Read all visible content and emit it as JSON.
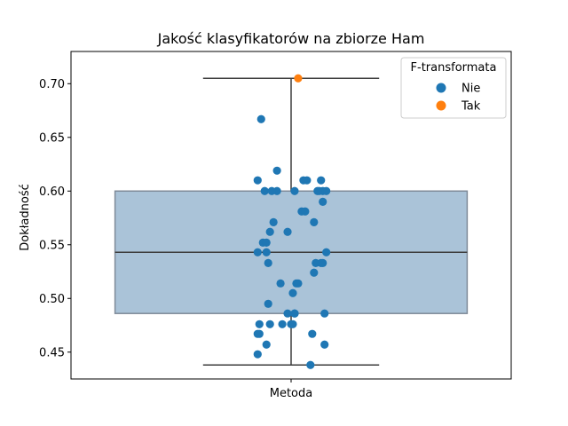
{
  "chart_data": {
    "type": "box-strip",
    "title": "Jakość klasyfikatorów na zbiorze Ham",
    "xlabel": "",
    "ylabel": "Dokładność",
    "categories": [
      "Metoda"
    ],
    "ylim": [
      0.425,
      0.73
    ],
    "yticks": [
      0.45,
      0.5,
      0.55,
      0.6,
      0.65,
      0.7
    ],
    "ytick_labels": [
      "0.45",
      "0.50",
      "0.55",
      "0.60",
      "0.65",
      "0.70"
    ],
    "grid": false,
    "box": {
      "whisker_low": 0.438,
      "q1": 0.486,
      "median": 0.543,
      "q3": 0.6,
      "whisker_high": 0.705,
      "fill_color": "#aac3d8",
      "edge_color": "#7f8a98",
      "line_color": "#3d3d3d"
    },
    "legend": {
      "title": "F-transformata",
      "placement": "top-right",
      "entries": [
        {
          "label": "Nie",
          "color": "#1f77b4"
        },
        {
          "label": "Tak",
          "color": "#ff7f0e"
        }
      ]
    },
    "series": [
      {
        "name": "Nie",
        "color": "#1f77b4",
        "x_jitter": [
          -0.17,
          -0.08,
          0.09,
          0.07,
          0.17,
          0.18,
          0.2,
          0.16,
          -0.19,
          -0.15,
          -0.08,
          -0.11,
          0.02,
          0.18,
          0.15,
          -0.1,
          0.06,
          0.08,
          0.13,
          -0.16,
          -0.14,
          -0.19,
          -0.14,
          -0.12,
          -0.02,
          -0.13,
          0.2,
          0.13,
          0.17,
          0.14,
          0.18,
          -0.06,
          0.03,
          0.01,
          0.04,
          -0.13,
          0.02,
          0.19,
          0.02,
          -0.02,
          -0.18,
          -0.12,
          0.0,
          -0.05,
          0.01,
          -0.18,
          0.12,
          -0.19,
          -0.14,
          0.19,
          -0.19,
          0.11
        ],
        "values": [
          0.667,
          0.619,
          0.61,
          0.61,
          0.61,
          0.6,
          0.6,
          0.6,
          0.61,
          0.6,
          0.6,
          0.6,
          0.6,
          0.59,
          0.6,
          0.571,
          0.581,
          0.581,
          0.571,
          0.552,
          0.552,
          0.543,
          0.543,
          0.562,
          0.562,
          0.533,
          0.543,
          0.524,
          0.533,
          0.533,
          0.533,
          0.514,
          0.514,
          0.505,
          0.514,
          0.495,
          0.486,
          0.486,
          0.486,
          0.486,
          0.476,
          0.476,
          0.476,
          0.476,
          0.476,
          0.467,
          0.467,
          0.448,
          0.457,
          0.457,
          0.467,
          0.438
        ]
      },
      {
        "name": "Tak",
        "color": "#ff7f0e",
        "x_jitter": [
          0.04
        ],
        "values": [
          0.705
        ]
      }
    ]
  }
}
